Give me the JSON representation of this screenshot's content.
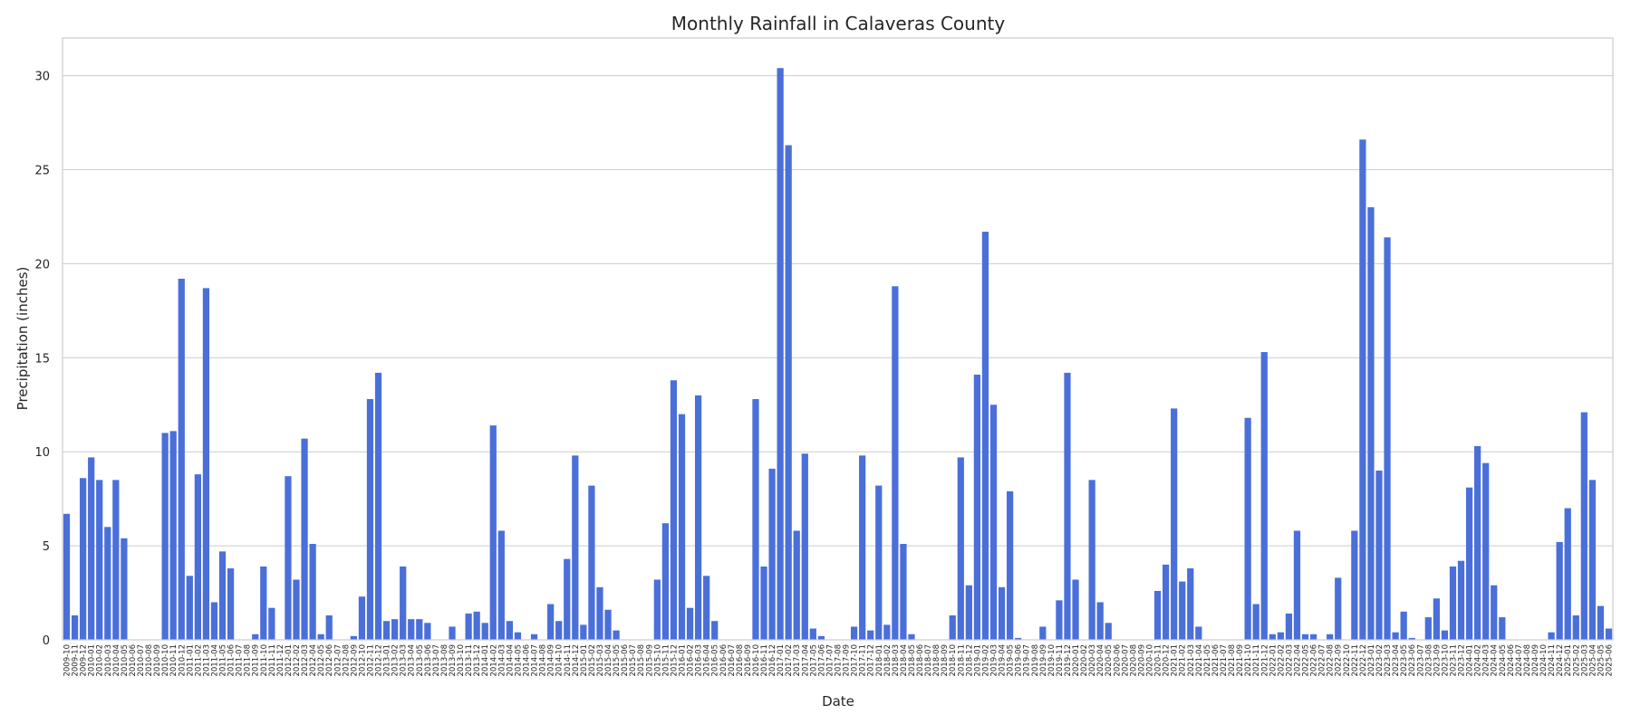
{
  "chart_data": {
    "type": "bar",
    "title": "Monthly Rainfall in Calaveras County",
    "xlabel": "Date",
    "ylabel": "Precipitation (inches)",
    "ylim": [
      0,
      32
    ],
    "yticks": [
      0,
      5,
      10,
      15,
      20,
      25,
      30
    ],
    "grid": "horizontal",
    "bar_color": "#4a6fd9",
    "categories": [
      "2009-10",
      "2009-11",
      "2009-12",
      "2010-01",
      "2010-02",
      "2010-03",
      "2010-04",
      "2010-05",
      "2010-06",
      "2010-07",
      "2010-08",
      "2010-09",
      "2010-10",
      "2010-11",
      "2010-12",
      "2011-01",
      "2011-02",
      "2011-03",
      "2011-04",
      "2011-05",
      "2011-06",
      "2011-07",
      "2011-08",
      "2011-09",
      "2011-10",
      "2011-11",
      "2011-12",
      "2012-01",
      "2012-02",
      "2012-03",
      "2012-04",
      "2012-05",
      "2012-06",
      "2012-07",
      "2012-08",
      "2012-09",
      "2012-10",
      "2012-11",
      "2012-12",
      "2013-01",
      "2013-02",
      "2013-03",
      "2013-04",
      "2013-05",
      "2013-06",
      "2013-07",
      "2013-08",
      "2013-09",
      "2013-10",
      "2013-11",
      "2013-12",
      "2014-01",
      "2014-02",
      "2014-03",
      "2014-04",
      "2014-05",
      "2014-06",
      "2014-07",
      "2014-08",
      "2014-09",
      "2014-10",
      "2014-11",
      "2014-12",
      "2015-01",
      "2015-02",
      "2015-03",
      "2015-04",
      "2015-05",
      "2015-06",
      "2015-07",
      "2015-08",
      "2015-09",
      "2015-10",
      "2015-11",
      "2015-12",
      "2016-01",
      "2016-02",
      "2016-03",
      "2016-04",
      "2016-05",
      "2016-06",
      "2016-07",
      "2016-08",
      "2016-09",
      "2016-10",
      "2016-11",
      "2016-12",
      "2017-01",
      "2017-02",
      "2017-03",
      "2017-04",
      "2017-05",
      "2017-06",
      "2017-07",
      "2017-08",
      "2017-09",
      "2017-10",
      "2017-11",
      "2017-12",
      "2018-01",
      "2018-02",
      "2018-03",
      "2018-04",
      "2018-05",
      "2018-06",
      "2018-07",
      "2018-08",
      "2018-09",
      "2018-10",
      "2018-11",
      "2018-12",
      "2019-01",
      "2019-02",
      "2019-03",
      "2019-04",
      "2019-05",
      "2019-06",
      "2019-07",
      "2019-08",
      "2019-09",
      "2019-10",
      "2019-11",
      "2019-12",
      "2020-01",
      "2020-02",
      "2020-03",
      "2020-04",
      "2020-05",
      "2020-06",
      "2020-07",
      "2020-08",
      "2020-09",
      "2020-10",
      "2020-11",
      "2020-12",
      "2021-01",
      "2021-02",
      "2021-03",
      "2021-04",
      "2021-05",
      "2021-06",
      "2021-07",
      "2021-08",
      "2021-09",
      "2021-10",
      "2021-11",
      "2021-12",
      "2022-01",
      "2022-02",
      "2022-03",
      "2022-04",
      "2022-05",
      "2022-06",
      "2022-07",
      "2022-08",
      "2022-09",
      "2022-10",
      "2022-11",
      "2022-12",
      "2023-01",
      "2023-02",
      "2023-03",
      "2023-04",
      "2023-05",
      "2023-06",
      "2023-07",
      "2023-08",
      "2023-09",
      "2023-10",
      "2023-11",
      "2023-12",
      "2024-01",
      "2024-02",
      "2024-03",
      "2024-04",
      "2024-05",
      "2024-06",
      "2024-07",
      "2024-08",
      "2024-09",
      "2024-10",
      "2024-11",
      "2024-12",
      "2025-01",
      "2025-02",
      "2025-03",
      "2025-04",
      "2025-05",
      "2025-06"
    ],
    "values": [
      6.7,
      1.3,
      8.6,
      9.7,
      8.5,
      6.0,
      8.5,
      5.4,
      0,
      0,
      0,
      0,
      11.0,
      11.1,
      19.2,
      3.4,
      8.8,
      18.7,
      2.0,
      4.7,
      3.8,
      0,
      0,
      0.3,
      3.9,
      1.7,
      0,
      8.7,
      3.2,
      10.7,
      5.1,
      0.3,
      1.3,
      0,
      0,
      0.2,
      2.3,
      12.8,
      14.2,
      1.0,
      1.1,
      3.9,
      1.1,
      1.1,
      0.9,
      0,
      0,
      0.7,
      0,
      1.4,
      1.5,
      0.9,
      11.4,
      5.8,
      1.0,
      0.4,
      0,
      0.3,
      0,
      1.9,
      1.0,
      4.3,
      9.8,
      0.8,
      8.2,
      2.8,
      1.6,
      0.5,
      0,
      0,
      0,
      0,
      3.2,
      6.2,
      13.8,
      12.0,
      1.7,
      13.0,
      3.4,
      1.0,
      0,
      0,
      0,
      0,
      12.8,
      3.9,
      9.1,
      30.4,
      26.3,
      5.8,
      9.9,
      0.6,
      0.2,
      0,
      0,
      0,
      0.7,
      9.8,
      0.5,
      8.2,
      0.8,
      18.8,
      5.1,
      0.3,
      0,
      0,
      0,
      0,
      1.3,
      9.7,
      2.9,
      14.1,
      21.7,
      12.5,
      2.8,
      7.9,
      0.1,
      0,
      0,
      0.7,
      0,
      2.1,
      14.2,
      3.2,
      0,
      8.5,
      2.0,
      0.9,
      0,
      0,
      0,
      0,
      0,
      2.6,
      4.0,
      12.3,
      3.1,
      3.8,
      0.7,
      0,
      0,
      0,
      0,
      0,
      11.8,
      1.9,
      15.3,
      0.3,
      0.4,
      1.4,
      5.8,
      0.3,
      0.3,
      0,
      0.3,
      3.3,
      0,
      5.8,
      26.6,
      23.0,
      9.0,
      21.4,
      0.4,
      1.5,
      0.1,
      0,
      1.2,
      2.2,
      0.5,
      3.9,
      4.2,
      8.1,
      10.3,
      9.4,
      2.9,
      1.2,
      0,
      0,
      0,
      0,
      0,
      0.4,
      5.2,
      7.0,
      1.3,
      12.1,
      8.5,
      1.8,
      0.6
    ]
  }
}
